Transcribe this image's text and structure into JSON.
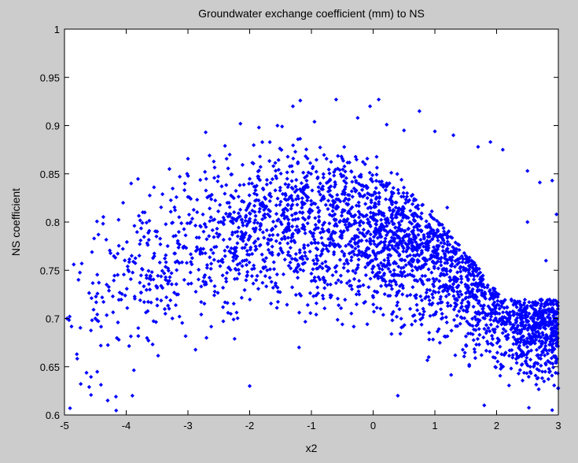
{
  "chart_data": {
    "type": "scatter",
    "title": "Groundwater exchange coefficient (mm) to NS",
    "xlabel": "x2",
    "ylabel": "NS coefficient",
    "xlim": [
      -5,
      3
    ],
    "ylim": [
      0.6,
      1
    ],
    "x_ticks": [
      "-5",
      "-4",
      "-3",
      "-2",
      "-1",
      "0",
      "1",
      "2",
      "3"
    ],
    "y_ticks": [
      "0.6",
      "0.65",
      "0.7",
      "0.75",
      "0.8",
      "0.85",
      "0.9",
      "0.95",
      "1"
    ],
    "grid": false,
    "marker_color": "#0000ff",
    "marker": "diamond",
    "point_count": 3000,
    "series": [
      {
        "points": [
          [
            -4.96,
            0.7
          ],
          [
            -4.91,
            0.607
          ],
          [
            -4.85,
            0.756
          ],
          [
            -4.8,
            0.663
          ],
          [
            -4.72,
            0.757
          ],
          [
            -4.6,
            0.629
          ],
          [
            -4.52,
            0.783
          ],
          [
            -4.45,
            0.787
          ],
          [
            -4.3,
            0.615
          ],
          [
            -4.05,
            0.82
          ],
          [
            -3.92,
            0.84
          ],
          [
            -3.7,
            0.81
          ],
          [
            -3.55,
            0.836
          ],
          [
            -3.3,
            0.855
          ],
          [
            -3.05,
            0.84
          ],
          [
            -2.65,
            0.869
          ],
          [
            -2.4,
            0.879
          ],
          [
            -2.15,
            0.902
          ],
          [
            -1.85,
            0.898
          ],
          [
            -1.55,
            0.9
          ],
          [
            -1.3,
            0.92
          ],
          [
            -1.18,
            0.926
          ],
          [
            -0.95,
            0.904
          ],
          [
            -0.6,
            0.927
          ],
          [
            -0.25,
            0.908
          ],
          [
            -0.05,
            0.92
          ],
          [
            0.09,
            0.927
          ],
          [
            0.22,
            0.901
          ],
          [
            0.5,
            0.895
          ],
          [
            0.75,
            0.915
          ],
          [
            1.0,
            0.894
          ],
          [
            1.3,
            0.89
          ],
          [
            1.7,
            0.878
          ],
          [
            1.9,
            0.883
          ],
          [
            2.1,
            0.875
          ],
          [
            2.5,
            0.853
          ],
          [
            2.7,
            0.841
          ],
          [
            2.9,
            0.843
          ],
          [
            2.97,
            0.808
          ],
          [
            -0.4,
            0.823
          ],
          [
            0.3,
            0.82
          ],
          [
            1.2,
            0.815
          ],
          [
            2.5,
            0.8
          ],
          [
            -1.5,
            0.8
          ],
          [
            -2.2,
            0.79
          ],
          [
            0.0,
            0.77
          ],
          [
            1.5,
            0.765
          ],
          [
            2.8,
            0.76
          ],
          [
            -3.5,
            0.72
          ],
          [
            -0.8,
            0.74
          ],
          [
            0.6,
            0.71
          ],
          [
            2.2,
            0.7
          ],
          [
            -4.5,
            0.7
          ],
          [
            -2.7,
            0.68
          ],
          [
            -1.2,
            0.67
          ],
          [
            0.9,
            0.66
          ],
          [
            2.6,
            0.65
          ],
          [
            -3.9,
            0.62
          ],
          [
            -2.0,
            0.63
          ],
          [
            0.4,
            0.62
          ],
          [
            1.8,
            0.61
          ],
          [
            2.9,
            0.605
          ]
        ]
      }
    ]
  }
}
